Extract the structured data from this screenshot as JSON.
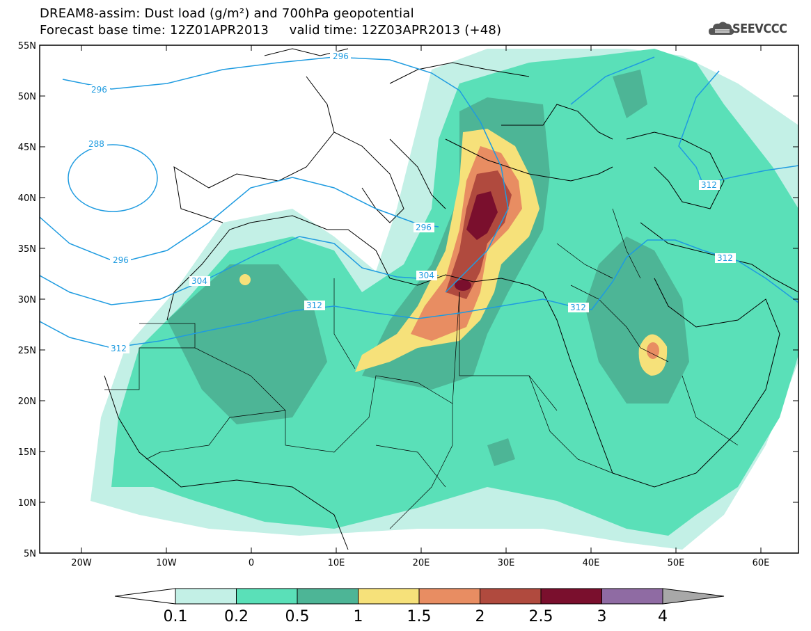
{
  "title_line1": "DREAM8-assim: Dust load (g/m²) and 700hPa geopotential",
  "title_line2": "Forecast base time: 12Z01APR2013     valid time: 12Z03APR2013 (+48)",
  "logo_text": "SEEVCCC",
  "lat_labels": [
    "55N",
    "50N",
    "45N",
    "40N",
    "35N",
    "30N",
    "25N",
    "20N",
    "15N",
    "10N",
    "5N"
  ],
  "lon_labels": [
    "20W",
    "10W",
    "0",
    "10E",
    "20E",
    "30E",
    "40E",
    "50E",
    "60E"
  ],
  "contour_labels": {
    "c296_top": "296",
    "c296_left": "296",
    "c288": "288",
    "c296_mid": "296",
    "c296_sea": "296",
    "c304_africa": "304",
    "c304_crete": "304",
    "c312_africa": "312",
    "c312_west": "312",
    "c312_arabia": "312",
    "c312_iran": "312",
    "c312_caspian": "312"
  },
  "colorbar": {
    "ticks": [
      "0.1",
      "0.2",
      "0.5",
      "1",
      "1.5",
      "2",
      "2.5",
      "3",
      "4"
    ],
    "colors": [
      "#c3f0e6",
      "#5ae0b8",
      "#4db596",
      "#f6e17a",
      "#e88d62",
      "#b04a3e",
      "#7a0f2d",
      "#8f6ba3",
      "#a8a8a8"
    ]
  },
  "colors": {
    "level_01": "#c3f0e6",
    "level_02": "#5ae0b8",
    "level_05": "#4db596",
    "level_1": "#f6e17a",
    "level_15": "#e88d62",
    "level_2": "#b04a3e",
    "level_25": "#7a0f2d",
    "contour": "#1e9be0"
  }
}
